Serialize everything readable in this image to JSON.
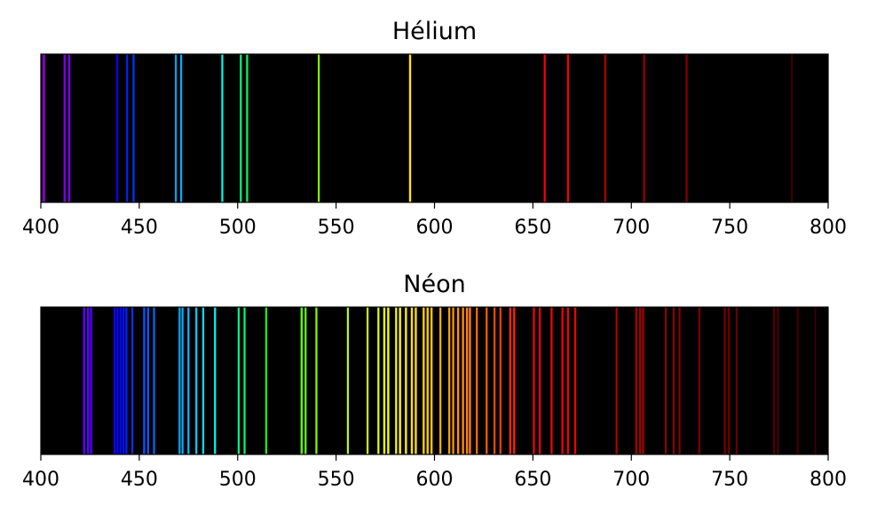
{
  "chart_data": [
    {
      "type": "spectrum",
      "title": "Hélium",
      "xlim": [
        400,
        800
      ],
      "ticks": [
        "400",
        "450",
        "500",
        "550",
        "600",
        "650",
        "700",
        "750",
        "800"
      ],
      "background": "#000000",
      "lines": [
        {
          "nm": 401.5,
          "width": 3.2
        },
        {
          "nm": 412.1,
          "width": 2.5
        },
        {
          "nm": 414.4,
          "width": 2.5
        },
        {
          "nm": 438.8,
          "width": 2.2
        },
        {
          "nm": 443.8,
          "width": 2.2
        },
        {
          "nm": 447.1,
          "width": 2.2
        },
        {
          "nm": 468.6,
          "width": 2.2
        },
        {
          "nm": 471.3,
          "width": 2.2
        },
        {
          "nm": 492.2,
          "width": 2.2
        },
        {
          "nm": 501.6,
          "width": 2.2
        },
        {
          "nm": 504.8,
          "width": 2.2
        },
        {
          "nm": 541.2,
          "width": 2.2
        },
        {
          "nm": 587.6,
          "width": 2.4
        },
        {
          "nm": 656.0,
          "width": 2.2
        },
        {
          "nm": 667.8,
          "width": 2.2
        },
        {
          "nm": 686.7,
          "width": 2.2
        },
        {
          "nm": 706.5,
          "width": 2.2
        },
        {
          "nm": 728.1,
          "width": 2.2
        },
        {
          "nm": 781.6,
          "width": 2.2
        }
      ]
    },
    {
      "type": "spectrum",
      "title": "Néon",
      "xlim": [
        400,
        800
      ],
      "ticks": [
        "400",
        "450",
        "500",
        "550",
        "600",
        "650",
        "700",
        "750",
        "800"
      ],
      "background": "#000000",
      "lines": [
        {
          "nm": 422.0,
          "width": 2.4
        },
        {
          "nm": 424.0,
          "width": 2.4
        },
        {
          "nm": 425.5,
          "width": 2.4
        },
        {
          "nm": 437.5,
          "width": 2.4
        },
        {
          "nm": 439.0,
          "width": 2.4
        },
        {
          "nm": 440.5,
          "width": 2.4
        },
        {
          "nm": 442.0,
          "width": 2.4
        },
        {
          "nm": 443.5,
          "width": 2.4
        },
        {
          "nm": 446.5,
          "width": 2.2
        },
        {
          "nm": 452.5,
          "width": 2.4
        },
        {
          "nm": 454.5,
          "width": 2.2
        },
        {
          "nm": 457.5,
          "width": 2.2
        },
        {
          "nm": 470.5,
          "width": 2.2
        },
        {
          "nm": 472.0,
          "width": 2.2
        },
        {
          "nm": 475.0,
          "width": 2.2
        },
        {
          "nm": 479.0,
          "width": 2.2
        },
        {
          "nm": 482.5,
          "width": 2.2
        },
        {
          "nm": 488.5,
          "width": 2.2
        },
        {
          "nm": 500.5,
          "width": 2.2
        },
        {
          "nm": 503.5,
          "width": 2.2
        },
        {
          "nm": 514.5,
          "width": 2.2
        },
        {
          "nm": 532.5,
          "width": 2.4
        },
        {
          "nm": 534.5,
          "width": 2.2
        },
        {
          "nm": 540.0,
          "width": 2.2
        },
        {
          "nm": 556.0,
          "width": 2.2
        },
        {
          "nm": 566.0,
          "width": 2.2
        },
        {
          "nm": 571.5,
          "width": 2.2
        },
        {
          "nm": 574.5,
          "width": 2.4
        },
        {
          "nm": 576.5,
          "width": 2.4
        },
        {
          "nm": 580.5,
          "width": 2.2
        },
        {
          "nm": 582.5,
          "width": 2.4
        },
        {
          "nm": 585.5,
          "width": 2.4
        },
        {
          "nm": 588.5,
          "width": 2.4
        },
        {
          "nm": 590.5,
          "width": 2.4
        },
        {
          "nm": 594.5,
          "width": 2.4
        },
        {
          "nm": 596.5,
          "width": 2.4
        },
        {
          "nm": 598.5,
          "width": 2.4
        },
        {
          "nm": 603.0,
          "width": 2.2
        },
        {
          "nm": 607.5,
          "width": 2.2
        },
        {
          "nm": 609.5,
          "width": 2.2
        },
        {
          "nm": 612.0,
          "width": 2.4
        },
        {
          "nm": 614.5,
          "width": 2.4
        },
        {
          "nm": 616.5,
          "width": 2.4
        },
        {
          "nm": 618.0,
          "width": 2.4
        },
        {
          "nm": 621.5,
          "width": 2.2
        },
        {
          "nm": 626.5,
          "width": 2.2
        },
        {
          "nm": 630.5,
          "width": 2.2
        },
        {
          "nm": 633.5,
          "width": 2.2
        },
        {
          "nm": 638.5,
          "width": 2.4
        },
        {
          "nm": 640.5,
          "width": 2.4
        },
        {
          "nm": 650.5,
          "width": 2.2
        },
        {
          "nm": 653.5,
          "width": 2.2
        },
        {
          "nm": 659.5,
          "width": 2.2
        },
        {
          "nm": 665.0,
          "width": 2.2
        },
        {
          "nm": 667.8,
          "width": 2.2
        },
        {
          "nm": 671.5,
          "width": 2.2
        },
        {
          "nm": 692.5,
          "width": 2.2
        },
        {
          "nm": 702.5,
          "width": 2.4
        },
        {
          "nm": 704.5,
          "width": 2.4
        },
        {
          "nm": 706.0,
          "width": 2.4
        },
        {
          "nm": 717.5,
          "width": 2.2
        },
        {
          "nm": 721.5,
          "width": 2.2
        },
        {
          "nm": 724.5,
          "width": 2.2
        },
        {
          "nm": 734.5,
          "width": 2.2
        },
        {
          "nm": 747.5,
          "width": 2.4
        },
        {
          "nm": 749.5,
          "width": 2.4
        },
        {
          "nm": 753.5,
          "width": 2.4
        },
        {
          "nm": 772.5,
          "width": 2.4
        },
        {
          "nm": 774.5,
          "width": 2.2
        },
        {
          "nm": 784.5,
          "width": 2.2
        },
        {
          "nm": 793.5,
          "width": 2.2
        }
      ]
    }
  ]
}
